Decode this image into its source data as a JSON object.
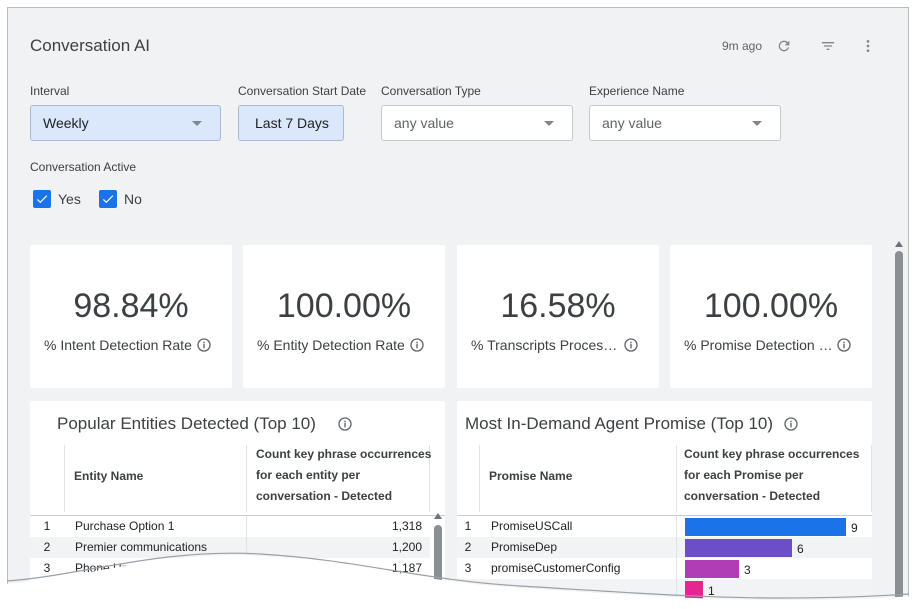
{
  "header": {
    "title": "Conversation AI",
    "updated": "9m ago",
    "icons": [
      "refresh-icon",
      "filter-icon",
      "more-vert-icon"
    ]
  },
  "filters": {
    "interval": {
      "label": "Interval",
      "value": "Weekly"
    },
    "start_date": {
      "label": "Conversation Start Date",
      "value": "Last 7 Days"
    },
    "conv_type": {
      "label": "Conversation Type",
      "value": "any value"
    },
    "experience": {
      "label": "Experience Name",
      "value": "any value"
    },
    "active": {
      "label": "Conversation Active",
      "options": [
        {
          "label": "Yes",
          "checked": true
        },
        {
          "label": "No",
          "checked": true
        }
      ]
    }
  },
  "kpis": [
    {
      "value": "98.84%",
      "label": "% Intent Detection Rate"
    },
    {
      "value": "100.00%",
      "label": "% Entity Detection Rate"
    },
    {
      "value": "16.58%",
      "label": "% Transcripts Processed"
    },
    {
      "value": "100.00%",
      "label": "% Promise Detection Rate"
    }
  ],
  "entities_table": {
    "title": "Popular Entities Detected (Top 10)",
    "col_name": "Entity Name",
    "col_count": [
      "Count key phrase occurrences",
      "for each entity per",
      "conversation - Detected"
    ],
    "rows": [
      {
        "n": "1",
        "name": "Purchase Option 1",
        "count": "1,318"
      },
      {
        "n": "2",
        "name": "Premier communications",
        "count": "1,200"
      },
      {
        "n": "3",
        "name": "Phone Upgrade",
        "count": "1,187"
      }
    ]
  },
  "promise_table": {
    "title": "Most In-Demand Agent Promise (Top 10)",
    "col_name": "Promise Name",
    "col_count": [
      "Count key phrase occurrences",
      "for each Promise per",
      "conversation - Detected"
    ],
    "rows": [
      {
        "n": "1",
        "name": "PromiseUSCall",
        "count": "9",
        "value": 9,
        "color": "#1a73e8"
      },
      {
        "n": "2",
        "name": "PromiseDep",
        "count": "6",
        "value": 6,
        "color": "#6a4fc9"
      },
      {
        "n": "3",
        "name": "promiseCustomerConfig",
        "count": "3",
        "value": 3,
        "color": "#b03cb6"
      },
      {
        "n": "",
        "name": "",
        "count": "1",
        "value": 1,
        "color": "#e52592"
      }
    ],
    "max_value": 9
  }
}
